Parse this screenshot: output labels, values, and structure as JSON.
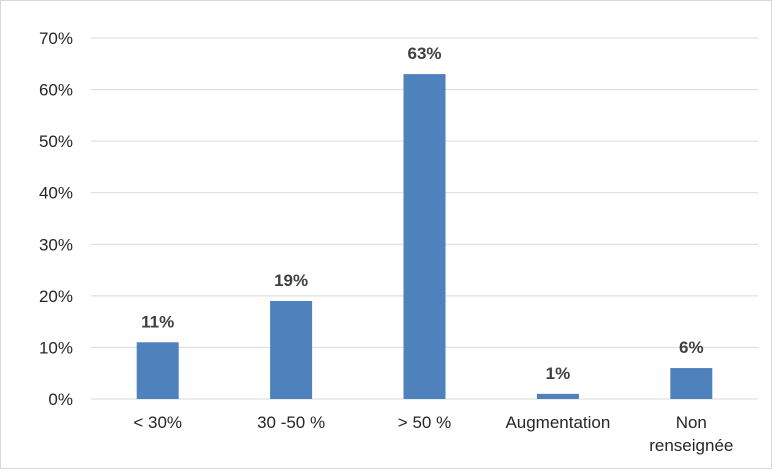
{
  "chart_data": {
    "type": "bar",
    "categories": [
      "< 30%",
      "30 -50 %",
      "> 50 %",
      "Augmentation",
      [
        "Non",
        "renseignée"
      ]
    ],
    "values": [
      11,
      19,
      63,
      1,
      6
    ],
    "data_labels": [
      "11%",
      "19%",
      "63%",
      "1%",
      "6%"
    ],
    "y_ticks": [
      "0%",
      "10%",
      "20%",
      "30%",
      "40%",
      "50%",
      "60%",
      "70%"
    ],
    "ylim": [
      0,
      70
    ],
    "grid": true,
    "bar_color": "#4f81bd",
    "gridline_color": "#d9d9d9",
    "legend": "none"
  }
}
